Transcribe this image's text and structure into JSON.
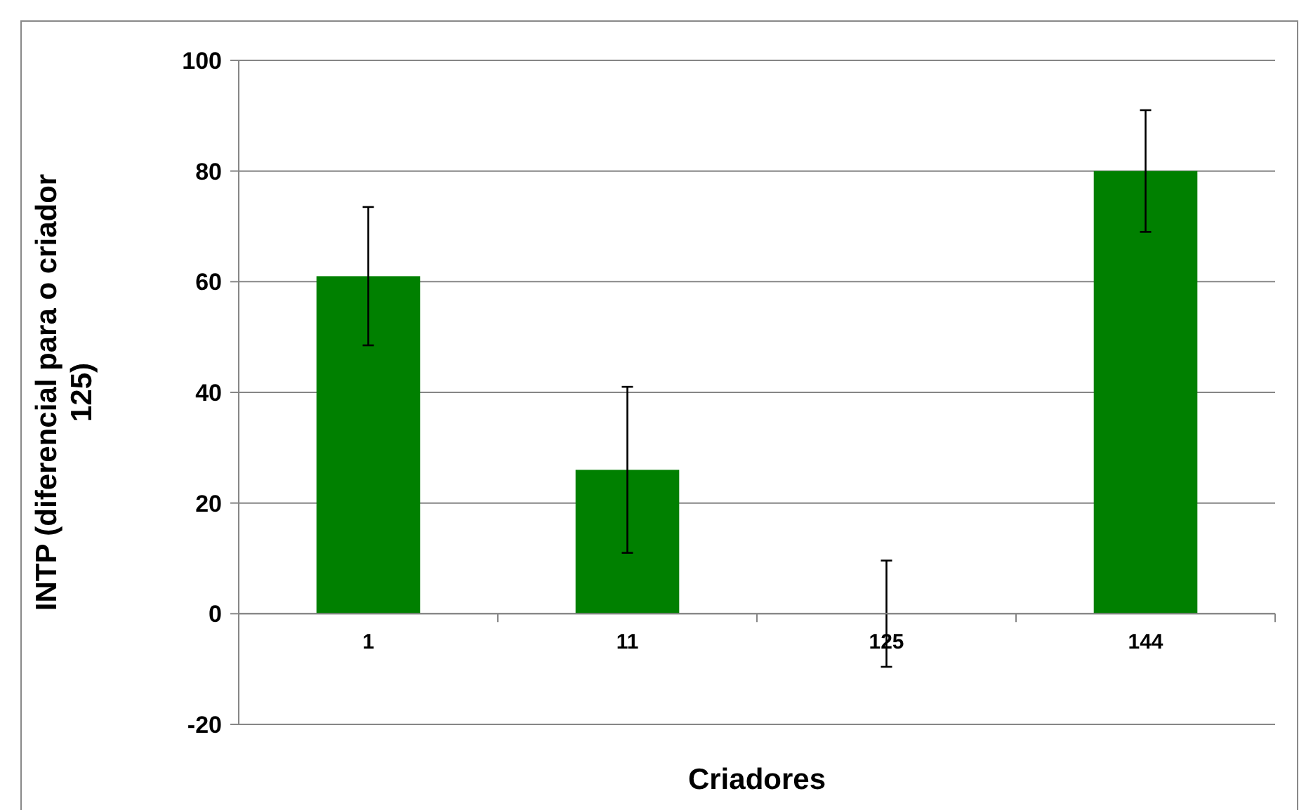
{
  "chart_data": {
    "type": "bar",
    "xlabel": "Criadores",
    "ylabel": "INTP (diferencial para o criador 125)",
    "categories": [
      "1",
      "11",
      "125",
      "144"
    ],
    "values": [
      61,
      26,
      0,
      80
    ],
    "errors": [
      12.5,
      15,
      9.6,
      11
    ],
    "color": "#008000",
    "ylim": [
      -20,
      100
    ],
    "yticks": [
      -20,
      0,
      20,
      40,
      60,
      80,
      100
    ],
    "grid": "y"
  }
}
